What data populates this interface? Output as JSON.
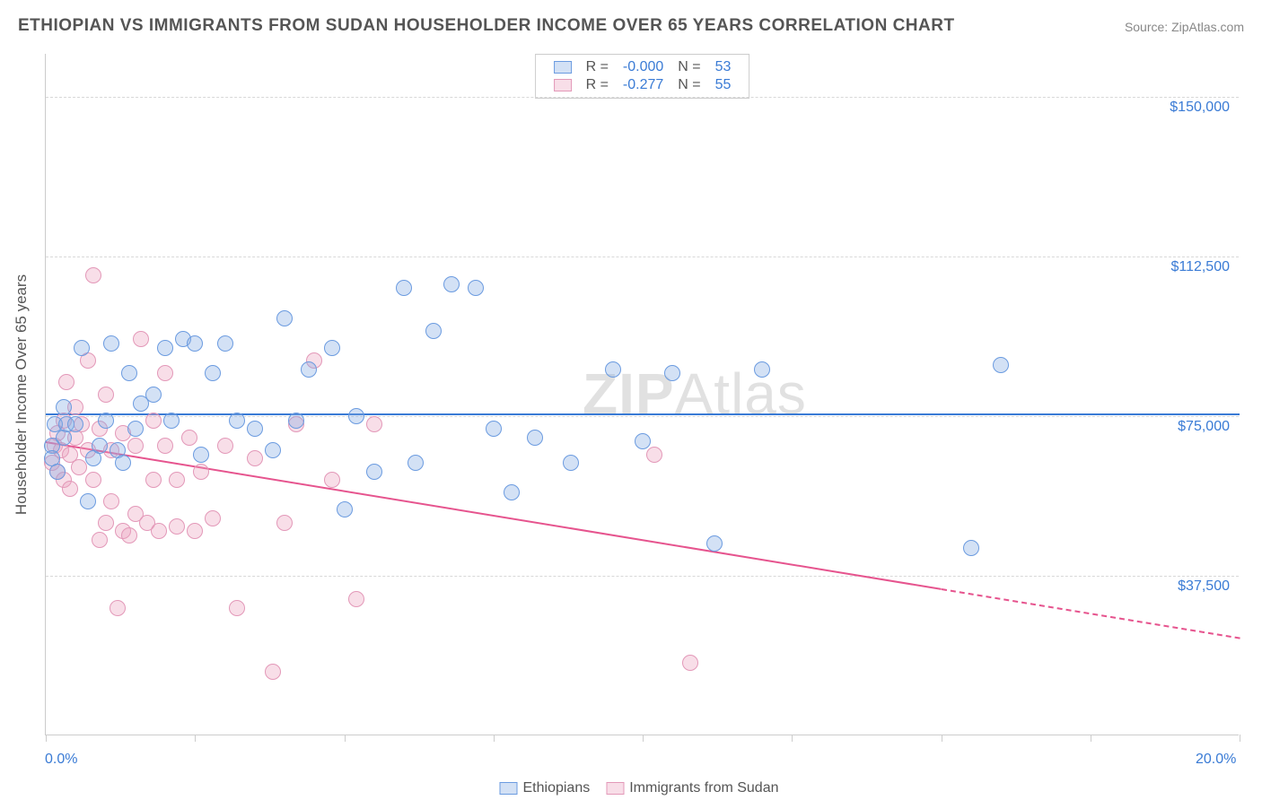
{
  "title": "ETHIOPIAN VS IMMIGRANTS FROM SUDAN HOUSEHOLDER INCOME OVER 65 YEARS CORRELATION CHART",
  "source_label": "Source: ",
  "source_name": "ZipAtlas.com",
  "y_axis_title": "Householder Income Over 65 years",
  "watermark_bold": "ZIP",
  "watermark_rest": "Atlas",
  "watermark_left_pct": 45,
  "watermark_top_pct": 45,
  "chart": {
    "type": "scatter",
    "background_color": "#ffffff",
    "grid_color": "#d8d8d8",
    "axis_color": "#cccccc",
    "value_text_color": "#3a7bd5",
    "label_text_color": "#555555",
    "title_fontsize": 19,
    "label_fontsize": 16,
    "xlim": [
      0,
      20
    ],
    "ylim": [
      0,
      160000
    ],
    "x_tick_positions": [
      0,
      2.5,
      5,
      7.5,
      10,
      12.5,
      15,
      17.5,
      20
    ],
    "x_tick_labels_shown": {
      "0": "0.0%",
      "20": "20.0%"
    },
    "y_gridlines": [
      37500,
      75000,
      112500,
      150000
    ],
    "y_tick_labels": [
      "$37,500",
      "$75,000",
      "$112,500",
      "$150,000"
    ],
    "marker_radius": 9,
    "marker_border_width": 1.5,
    "trend_line_width": 2,
    "series": [
      {
        "name": "Ethiopians",
        "fill_color": "rgba(130,170,226,0.35)",
        "stroke_color": "#6b9be0",
        "line_color": "#3a7bd5",
        "R": "-0.000",
        "N": "53",
        "trend": {
          "x1": 0,
          "y1": 75500,
          "x2": 20,
          "y2": 75500,
          "dash_from_x": null
        },
        "points": [
          [
            0.1,
            68000
          ],
          [
            0.1,
            65000
          ],
          [
            0.15,
            73000
          ],
          [
            0.2,
            62000
          ],
          [
            0.3,
            70000
          ],
          [
            0.3,
            77000
          ],
          [
            0.35,
            73000
          ],
          [
            0.5,
            73000
          ],
          [
            0.6,
            91000
          ],
          [
            0.7,
            55000
          ],
          [
            0.8,
            65000
          ],
          [
            0.9,
            68000
          ],
          [
            1.0,
            74000
          ],
          [
            1.1,
            92000
          ],
          [
            1.2,
            67000
          ],
          [
            1.3,
            64000
          ],
          [
            1.4,
            85000
          ],
          [
            1.5,
            72000
          ],
          [
            1.6,
            78000
          ],
          [
            1.8,
            80000
          ],
          [
            2.0,
            91000
          ],
          [
            2.1,
            74000
          ],
          [
            2.3,
            93000
          ],
          [
            2.5,
            92000
          ],
          [
            2.6,
            66000
          ],
          [
            2.8,
            85000
          ],
          [
            3.0,
            92000
          ],
          [
            3.2,
            74000
          ],
          [
            3.5,
            72000
          ],
          [
            3.8,
            67000
          ],
          [
            4.0,
            98000
          ],
          [
            4.2,
            74000
          ],
          [
            4.4,
            86000
          ],
          [
            4.8,
            91000
          ],
          [
            5.0,
            53000
          ],
          [
            5.2,
            75000
          ],
          [
            5.5,
            62000
          ],
          [
            6.0,
            105000
          ],
          [
            6.2,
            64000
          ],
          [
            6.5,
            95000
          ],
          [
            6.8,
            106000
          ],
          [
            7.2,
            105000
          ],
          [
            7.5,
            72000
          ],
          [
            7.8,
            57000
          ],
          [
            8.2,
            70000
          ],
          [
            8.8,
            64000
          ],
          [
            9.5,
            86000
          ],
          [
            10.0,
            69000
          ],
          [
            10.5,
            85000
          ],
          [
            11.2,
            45000
          ],
          [
            12.0,
            86000
          ],
          [
            15.5,
            44000
          ],
          [
            16.0,
            87000
          ]
        ]
      },
      {
        "name": "Immigrants from Sudan",
        "fill_color": "rgba(234,160,188,0.35)",
        "stroke_color": "#e398b8",
        "line_color": "#e6548e",
        "R": "-0.277",
        "N": "55",
        "trend": {
          "x1": 0,
          "y1": 69000,
          "x2": 20,
          "y2": 23000,
          "dash_from_x": 15
        },
        "points": [
          [
            0.1,
            64000
          ],
          [
            0.15,
            68000
          ],
          [
            0.2,
            62000
          ],
          [
            0.2,
            71000
          ],
          [
            0.25,
            67000
          ],
          [
            0.3,
            60000
          ],
          [
            0.3,
            74000
          ],
          [
            0.35,
            83000
          ],
          [
            0.4,
            66000
          ],
          [
            0.4,
            58000
          ],
          [
            0.5,
            77000
          ],
          [
            0.5,
            70000
          ],
          [
            0.55,
            63000
          ],
          [
            0.6,
            73000
          ],
          [
            0.7,
            67000
          ],
          [
            0.7,
            88000
          ],
          [
            0.8,
            60000
          ],
          [
            0.8,
            108000
          ],
          [
            0.9,
            46000
          ],
          [
            0.9,
            72000
          ],
          [
            1.0,
            50000
          ],
          [
            1.0,
            80000
          ],
          [
            1.1,
            67000
          ],
          [
            1.1,
            55000
          ],
          [
            1.2,
            30000
          ],
          [
            1.3,
            71000
          ],
          [
            1.3,
            48000
          ],
          [
            1.4,
            47000
          ],
          [
            1.5,
            68000
          ],
          [
            1.5,
            52000
          ],
          [
            1.6,
            93000
          ],
          [
            1.7,
            50000
          ],
          [
            1.8,
            74000
          ],
          [
            1.8,
            60000
          ],
          [
            1.9,
            48000
          ],
          [
            2.0,
            68000
          ],
          [
            2.0,
            85000
          ],
          [
            2.2,
            60000
          ],
          [
            2.2,
            49000
          ],
          [
            2.4,
            70000
          ],
          [
            2.5,
            48000
          ],
          [
            2.6,
            62000
          ],
          [
            2.8,
            51000
          ],
          [
            3.0,
            68000
          ],
          [
            3.2,
            30000
          ],
          [
            3.5,
            65000
          ],
          [
            3.8,
            15000
          ],
          [
            4.0,
            50000
          ],
          [
            4.2,
            73000
          ],
          [
            4.5,
            88000
          ],
          [
            4.8,
            60000
          ],
          [
            5.2,
            32000
          ],
          [
            5.5,
            73000
          ],
          [
            10.2,
            66000
          ],
          [
            10.8,
            17000
          ]
        ]
      }
    ]
  },
  "legend_top": {
    "r_label": "R =",
    "n_label": "N ="
  },
  "legend_bottom_labels": [
    "Ethiopians",
    "Immigrants from Sudan"
  ]
}
